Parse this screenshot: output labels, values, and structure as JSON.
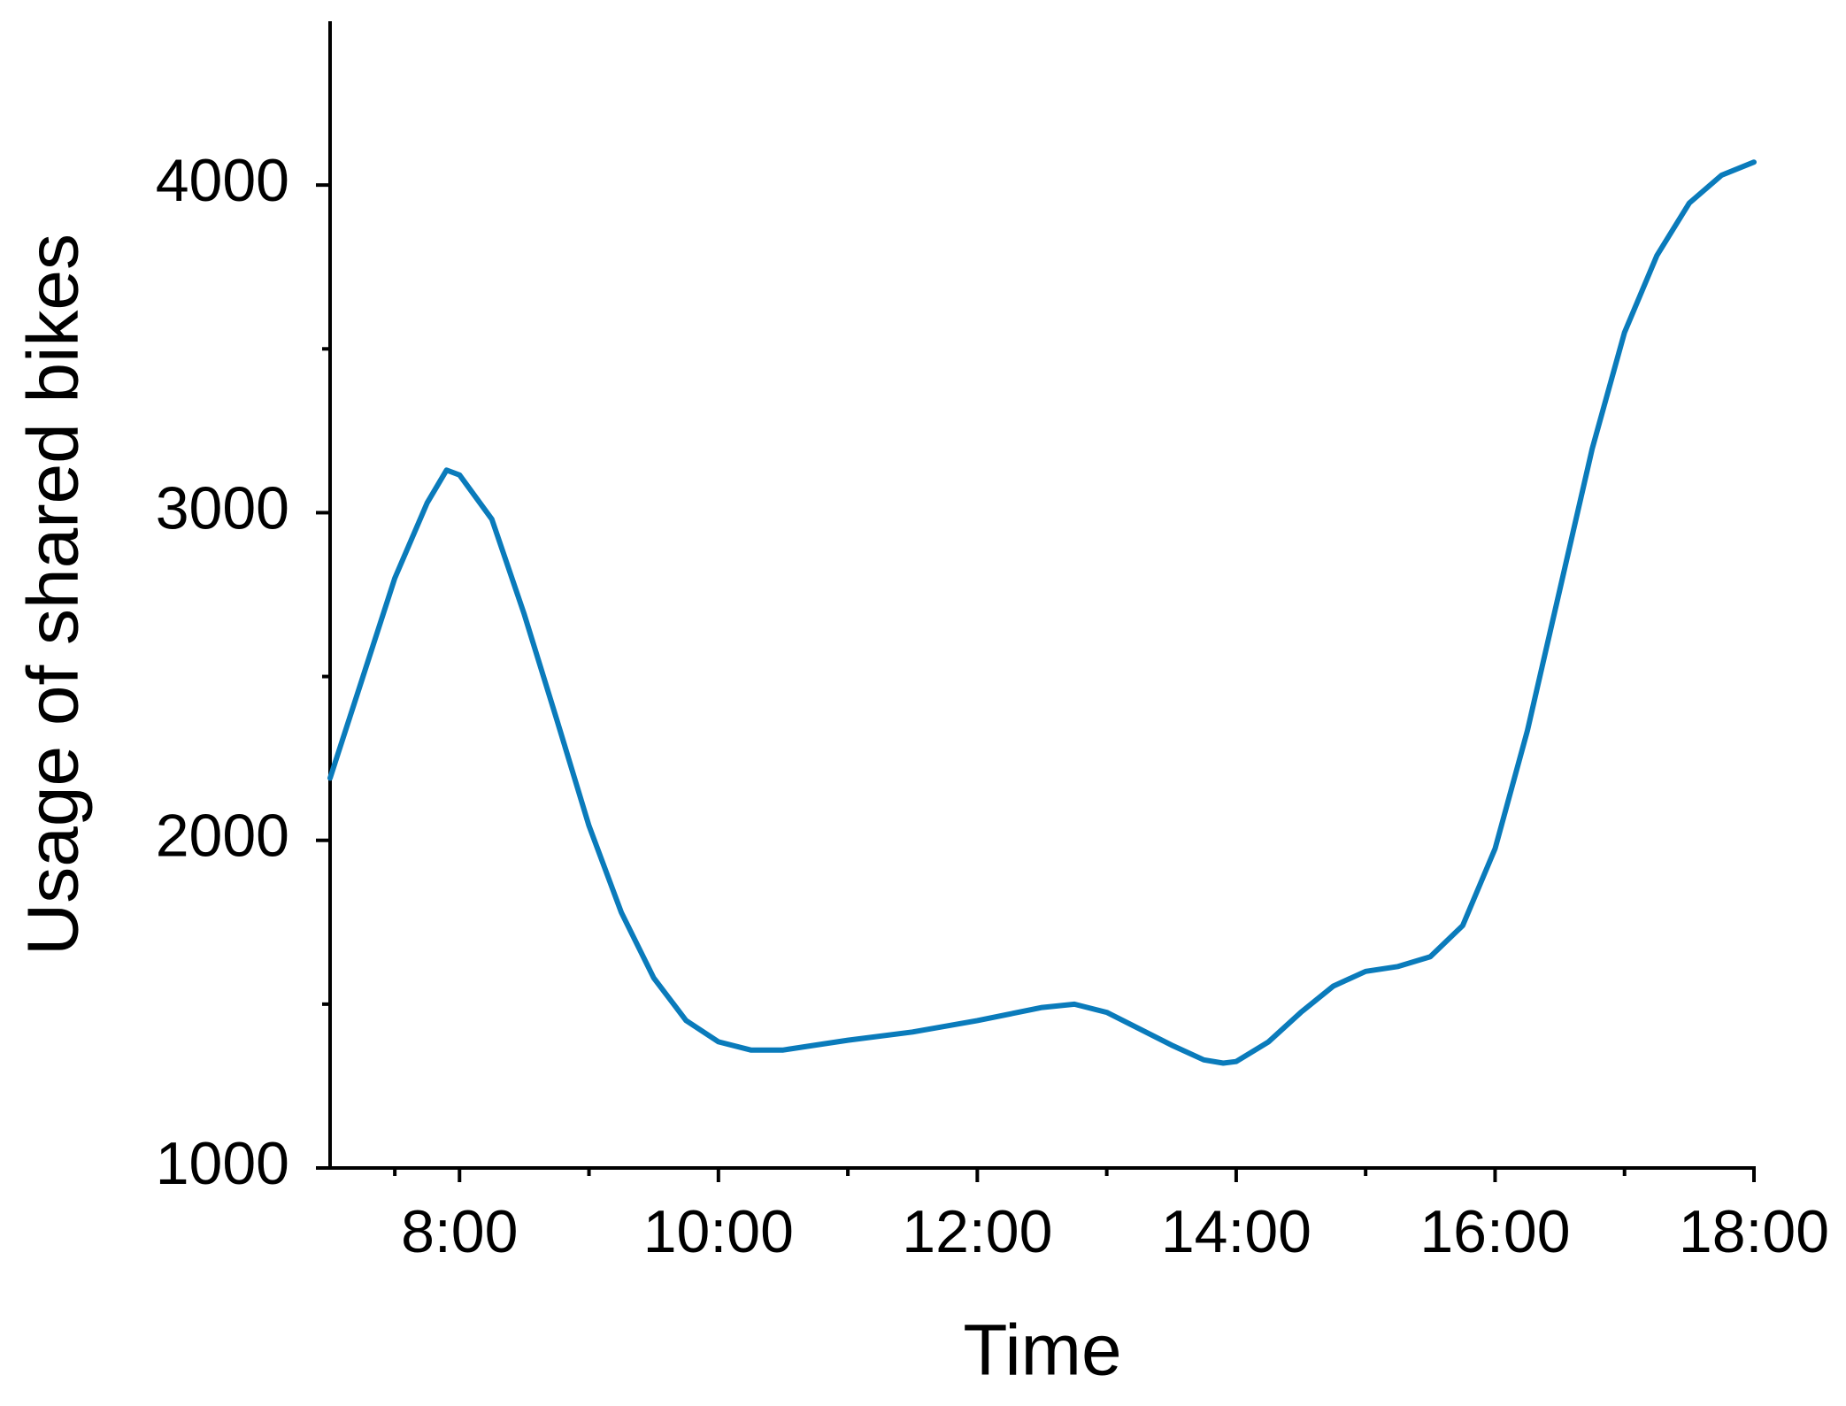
{
  "chart_data": {
    "type": "line",
    "x_label": "Time",
    "y_label": "Usage of shared bikes",
    "x": [
      7.0,
      7.25,
      7.5,
      7.75,
      7.9,
      8.0,
      8.25,
      8.5,
      8.75,
      9.0,
      9.25,
      9.5,
      9.75,
      10.0,
      10.25,
      10.5,
      10.75,
      11.0,
      11.5,
      12.0,
      12.5,
      12.75,
      13.0,
      13.25,
      13.5,
      13.75,
      13.9,
      14.0,
      14.25,
      14.5,
      14.75,
      15.0,
      15.25,
      15.5,
      15.75,
      16.0,
      16.25,
      16.5,
      16.75,
      17.0,
      17.25,
      17.5,
      17.75,
      18.0
    ],
    "series": [
      {
        "color": "#0a7bbb",
        "values": [
          2190,
          2495,
          2800,
          3030,
          3130,
          3115,
          2980,
          2690,
          2370,
          2045,
          1780,
          1580,
          1450,
          1385,
          1360,
          1360,
          1375,
          1390,
          1415,
          1450,
          1490,
          1500,
          1475,
          1425,
          1375,
          1330,
          1320,
          1325,
          1385,
          1475,
          1555,
          1600,
          1615,
          1645,
          1740,
          1975,
          2335,
          2765,
          3195,
          3550,
          3785,
          3945,
          4030,
          4070
        ]
      }
    ],
    "xlim": [
      7,
      18
    ],
    "xticks": [
      {
        "value": 8,
        "label": "8:00"
      },
      {
        "value": 10,
        "label": "10:00"
      },
      {
        "value": 12,
        "label": "12:00"
      },
      {
        "value": 14,
        "label": "14:00"
      },
      {
        "value": 16,
        "label": "16:00"
      },
      {
        "value": 18,
        "label": "18:00"
      }
    ],
    "ylim": [
      1000,
      4500
    ],
    "yticks": [
      1000,
      2000,
      3000,
      4000
    ],
    "grid": false
  }
}
